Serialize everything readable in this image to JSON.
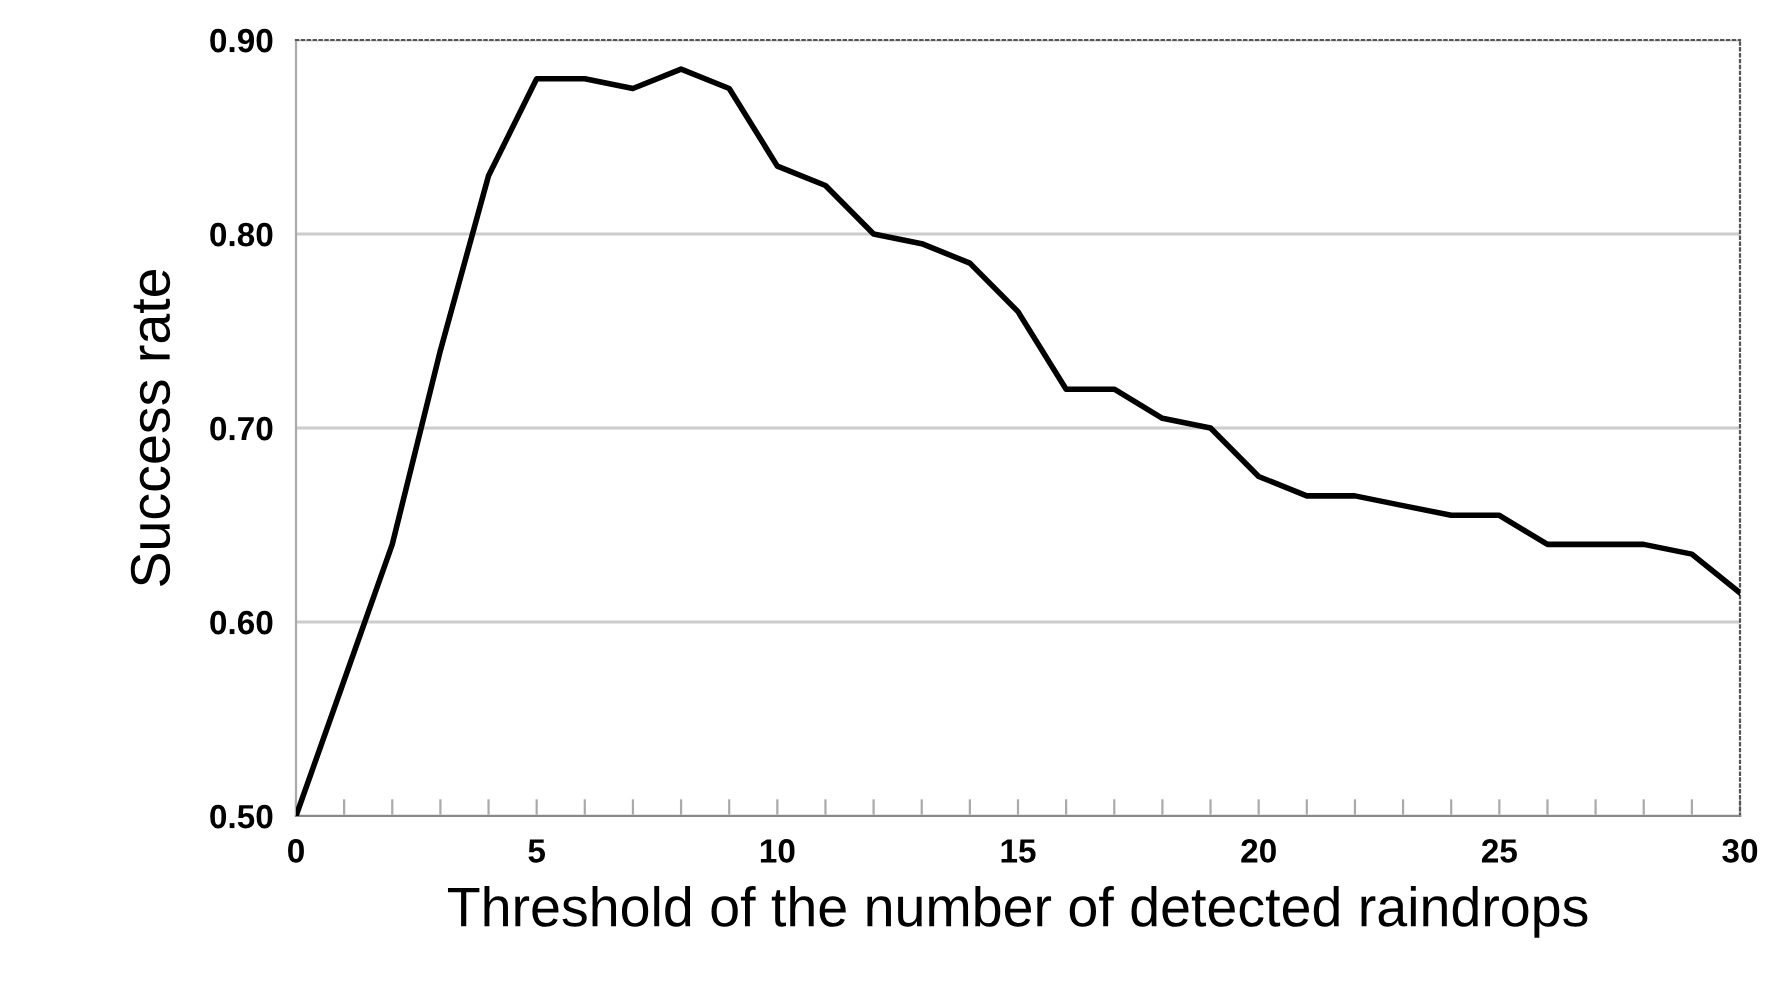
{
  "chart_data": {
    "type": "line",
    "xlabel": "Threshold of the number of detected raindrops",
    "ylabel": "Success rate",
    "x": [
      0,
      1,
      2,
      3,
      4,
      5,
      6,
      7,
      8,
      9,
      10,
      11,
      12,
      13,
      14,
      15,
      16,
      17,
      18,
      19,
      20,
      21,
      22,
      23,
      24,
      25,
      26,
      27,
      28,
      29,
      30
    ],
    "series": [
      {
        "color": "#000000",
        "values": [
          0.5,
          0.57,
          0.64,
          0.74,
          0.83,
          0.88,
          0.88,
          0.875,
          0.885,
          0.875,
          0.835,
          0.825,
          0.8,
          0.795,
          0.785,
          0.76,
          0.72,
          0.72,
          0.705,
          0.7,
          0.675,
          0.665,
          0.665,
          0.66,
          0.655,
          0.655,
          0.64,
          0.64,
          0.64,
          0.635,
          0.615
        ]
      }
    ],
    "xlim": [
      0,
      30
    ],
    "ylim": [
      0.5,
      0.9
    ],
    "xticks": [
      0,
      {
        "value": 1,
        "label": null
      },
      {
        "value": 2,
        "label": null
      },
      {
        "value": 3,
        "label": null
      },
      {
        "value": 4,
        "label": null
      },
      5,
      {
        "value": 6,
        "label": null
      },
      {
        "value": 7,
        "label": null
      },
      {
        "value": 8,
        "label": null
      },
      {
        "value": 9,
        "label": null
      },
      10,
      {
        "value": 11,
        "label": null
      },
      {
        "value": 12,
        "label": null
      },
      {
        "value": 13,
        "label": null
      },
      {
        "value": 14,
        "label": null
      },
      15,
      {
        "value": 16,
        "label": null
      },
      {
        "value": 17,
        "label": null
      },
      {
        "value": 18,
        "label": null
      },
      {
        "value": 19,
        "label": null
      },
      20,
      {
        "value": 21,
        "label": null
      },
      {
        "value": 22,
        "label": null
      },
      {
        "value": 23,
        "label": null
      },
      {
        "value": 24,
        "label": null
      },
      25,
      {
        "value": 26,
        "label": null
      },
      {
        "value": 27,
        "label": null
      },
      {
        "value": 28,
        "label": null
      },
      {
        "value": 29,
        "label": null
      },
      30
    ],
    "yticks": [
      {
        "value": 0.5,
        "label": "0.50"
      },
      {
        "value": 0.6,
        "label": "0.60"
      },
      {
        "value": 0.7,
        "label": "0.70"
      },
      {
        "value": 0.8,
        "label": "0.80"
      },
      {
        "value": 0.9,
        "label": "0.90"
      }
    ],
    "grid": "y",
    "legend": false,
    "marker": "none",
    "line_style": "solid"
  }
}
